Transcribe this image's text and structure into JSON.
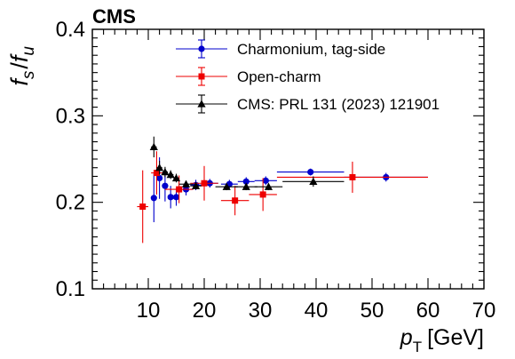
{
  "chart_data": {
    "type": "scatter",
    "experiment_label": "CMS",
    "ylabel": {
      "main": "f",
      "num_sub": "s",
      "slash": "/",
      "den_main": "f",
      "den_sub": "u"
    },
    "xlabel": {
      "main": "p",
      "sub": "T",
      "unit": "[GeV]"
    },
    "xlim": [
      0,
      70
    ],
    "ylim": [
      0.1,
      0.4
    ],
    "x_ticks": [
      10,
      20,
      30,
      40,
      50,
      60,
      70
    ],
    "y_ticks": [
      0.1,
      0.2,
      0.3,
      0.4
    ],
    "legend_position": "top-right",
    "series": [
      {
        "name": "Charmonium, tag-side",
        "color": "#0000cc",
        "marker": "circle",
        "points": [
          {
            "x": 11.0,
            "xerr": 0.5,
            "y": 0.205,
            "yerr": 0.028
          },
          {
            "x": 12.0,
            "xerr": 0.5,
            "y": 0.228,
            "yerr": 0.024
          },
          {
            "x": 13.0,
            "xerr": 0.5,
            "y": 0.219,
            "yerr": 0.018
          },
          {
            "x": 14.0,
            "xerr": 0.5,
            "y": 0.206,
            "yerr": 0.013
          },
          {
            "x": 15.0,
            "xerr": 0.5,
            "y": 0.206,
            "yerr": 0.01
          },
          {
            "x": 16.75,
            "xerr": 1.25,
            "y": 0.215,
            "yerr": 0.007
          },
          {
            "x": 18.5,
            "xerr": 1.0,
            "y": 0.22,
            "yerr": 0.006
          },
          {
            "x": 21.0,
            "xerr": 1.5,
            "y": 0.222,
            "yerr": 0.005
          },
          {
            "x": 24.5,
            "xerr": 1.5,
            "y": 0.221,
            "yerr": 0.005
          },
          {
            "x": 27.5,
            "xerr": 1.5,
            "y": 0.224,
            "yerr": 0.005
          },
          {
            "x": 31.0,
            "xerr": 2.0,
            "y": 0.225,
            "yerr": 0.005
          },
          {
            "x": 39.0,
            "xerr": 6.0,
            "y": 0.235,
            "yerr": 0.004
          },
          {
            "x": 52.5,
            "xerr": 7.5,
            "y": 0.229,
            "yerr": 0.005
          }
        ]
      },
      {
        "name": "Open-charm",
        "color": "#ee0000",
        "marker": "square",
        "points": [
          {
            "x": 9.0,
            "xerr": 1.0,
            "y": 0.195,
            "yerr": 0.042
          },
          {
            "x": 11.5,
            "xerr": 1.0,
            "y": 0.234,
            "yerr": 0.025
          },
          {
            "x": 15.5,
            "xerr": 2.5,
            "y": 0.215,
            "yerr": 0.016
          },
          {
            "x": 20.0,
            "xerr": 2.5,
            "y": 0.222,
            "yerr": 0.02
          },
          {
            "x": 25.5,
            "xerr": 2.5,
            "y": 0.202,
            "yerr": 0.017
          },
          {
            "x": 30.5,
            "xerr": 2.5,
            "y": 0.209,
            "yerr": 0.019
          },
          {
            "x": 46.5,
            "xerr": 13.5,
            "y": 0.229,
            "yerr": 0.018
          }
        ]
      },
      {
        "name": "CMS: PRL 131 (2023) 121901",
        "color": "#000000",
        "marker": "triangle",
        "points": [
          {
            "x": 11.0,
            "xerr": 0.5,
            "y": 0.264,
            "yerr": 0.012
          },
          {
            "x": 12.0,
            "xerr": 0.5,
            "y": 0.24,
            "yerr": 0.008
          },
          {
            "x": 13.0,
            "xerr": 0.5,
            "y": 0.235,
            "yerr": 0.006
          },
          {
            "x": 14.0,
            "xerr": 0.5,
            "y": 0.232,
            "yerr": 0.005
          },
          {
            "x": 15.0,
            "xerr": 0.5,
            "y": 0.228,
            "yerr": 0.005
          },
          {
            "x": 16.75,
            "xerr": 1.25,
            "y": 0.221,
            "yerr": 0.004
          },
          {
            "x": 18.5,
            "xerr": 1.0,
            "y": 0.219,
            "yerr": 0.004
          },
          {
            "x": 24.0,
            "xerr": 2.0,
            "y": 0.218,
            "yerr": 0.004
          },
          {
            "x": 27.5,
            "xerr": 2.0,
            "y": 0.218,
            "yerr": 0.004
          },
          {
            "x": 31.5,
            "xerr": 2.5,
            "y": 0.218,
            "yerr": 0.004
          },
          {
            "x": 39.5,
            "xerr": 5.5,
            "y": 0.224,
            "yerr": 0.006
          }
        ]
      }
    ]
  }
}
